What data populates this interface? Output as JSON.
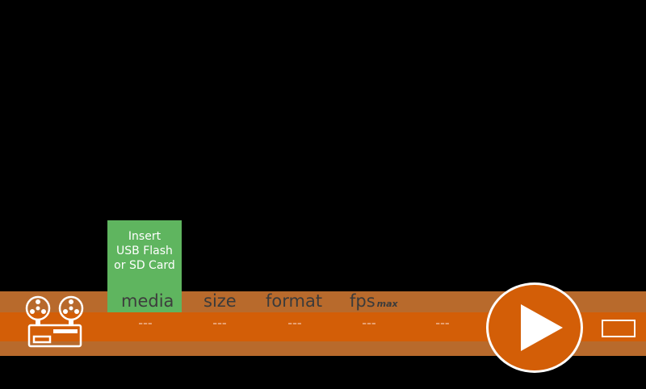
{
  "media_prompt": "Insert\nUSB Flash\nor SD Card",
  "columns": {
    "media": "media",
    "size": "size",
    "format": "format",
    "fps": "fps",
    "fps_suffix": "max"
  },
  "values": {
    "media": "---",
    "size": "---",
    "format": "---",
    "fps": "---",
    "extra": "---"
  },
  "icons": {
    "projector": "film-projector-icon",
    "play": "play-icon",
    "fullscreen": "rectangle-icon"
  },
  "colors": {
    "background": "#000000",
    "band_light": "#b86a2c",
    "band_dark": "#d35e07",
    "media_box": "#5fb55f",
    "play_fill": "#d35e07"
  }
}
